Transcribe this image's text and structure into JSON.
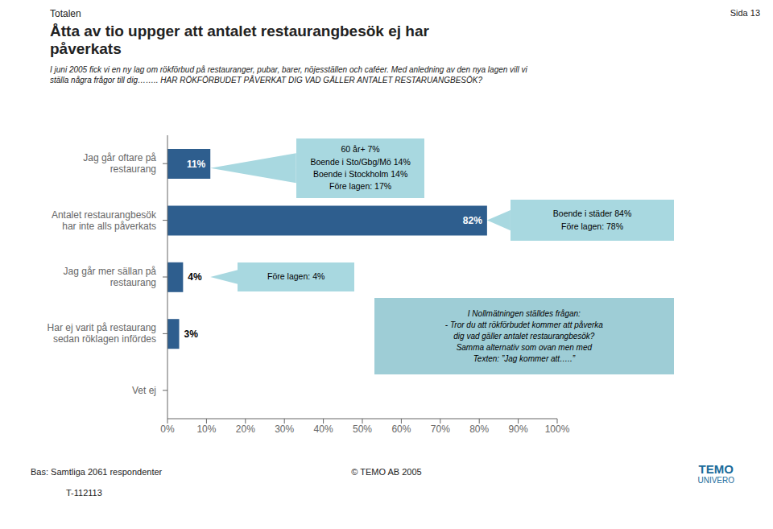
{
  "chart_data": {
    "type": "bar",
    "orientation": "horizontal",
    "pretitle": "Totalen",
    "title": "Åtta av tio uppger att antalet restaurangbesök ej har\npåverkats",
    "page_label": "Sida 13",
    "subtitle": "I juni 2005 fick vi en ny lag om rökförbud på restauranger, pubar, barer, nöjesställen och caféer. Med anledning av den nya lagen vill vi\nställa några frågor till dig…….. HAR RÖKFÖRBUDET PÅVERKAT DIG VAD GÄLLER ANTALET RESTARUANGBESÖK?",
    "categories": [
      "Jag går oftare på\nrestaurang",
      "Antalet restaurangbesök\nhar inte alls påverkats",
      "Jag går mer sällan på\nrestaurang",
      "Har ej varit på restaurang\nsedan röklagen infördes",
      "Vet ej"
    ],
    "values": [
      11,
      82,
      4,
      3,
      0
    ],
    "value_labels": [
      "11%",
      "82%",
      "4%",
      "3%",
      null
    ],
    "data_labels": true,
    "color": "#2E5E8E",
    "xlim": [
      0,
      100
    ],
    "xticks": [
      {
        "value": 0,
        "label": "0%"
      },
      {
        "value": 10,
        "label": "10%"
      },
      {
        "value": 20,
        "label": "20%"
      },
      {
        "value": 30,
        "label": "30%"
      },
      {
        "value": 40,
        "label": "40%"
      },
      {
        "value": 50,
        "label": "50%"
      },
      {
        "value": 60,
        "label": "60%"
      },
      {
        "value": 70,
        "label": "70%"
      },
      {
        "value": 80,
        "label": "80%"
      },
      {
        "value": 90,
        "label": "90%"
      },
      {
        "value": 100,
        "label": "100%"
      }
    ],
    "grid": false,
    "annotations": [
      {
        "text": "60 år+  7%\nBoende i Sto/Gbg/Mö 14%\nBoende i Stockholm 14%\nFöre lagen: 17%",
        "color": "#A8D8E0"
      },
      {
        "text": "Boende i städer 84%\nFöre lagen: 78%",
        "color": "#A8D8E0"
      },
      {
        "text": "Före  lagen: 4%",
        "color": "#A8D8E0"
      },
      {
        "text": "I Nollmätningen ställdes frågan:\n- Tror du att rökförbudet kommer att påverka\ndig vad gäller antalet restaurangbesök?\nSamma alternativ som ovan men med\nTexten: ”Jag kommer att…..”",
        "color": "#9ECDD6"
      }
    ],
    "footer": [
      "Bas: Samtliga 2061 respondenter",
      "© TEMO AB 2005",
      "T-112113"
    ],
    "logo": [
      "TEMO",
      "UNIVERO"
    ]
  }
}
